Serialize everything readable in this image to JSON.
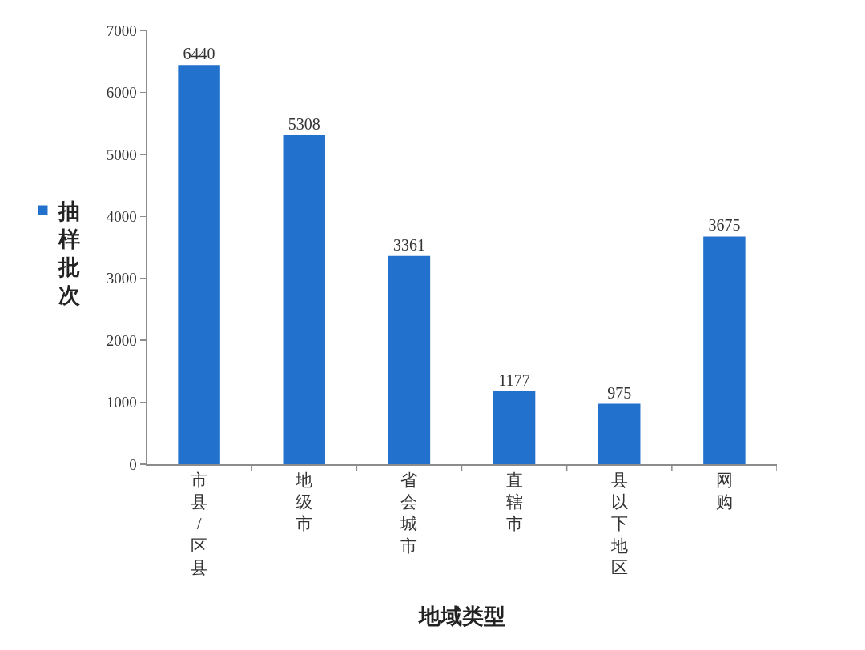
{
  "chart_data": {
    "type": "bar",
    "xlabel": "地域类型",
    "categories": [
      "市县/区县",
      "地级市",
      "省会城市",
      "直辖市",
      "县以下地区",
      "网购"
    ],
    "series": [
      {
        "name": "抽样批次",
        "color": "#2271cc",
        "values": [
          6440,
          5308,
          3361,
          1177,
          975,
          3675
        ]
      }
    ],
    "ylim": [
      0,
      7000
    ],
    "yticks": [
      0,
      1000,
      2000,
      3000,
      4000,
      5000,
      6000,
      7000
    ],
    "data_labels": true,
    "legend": "left"
  }
}
